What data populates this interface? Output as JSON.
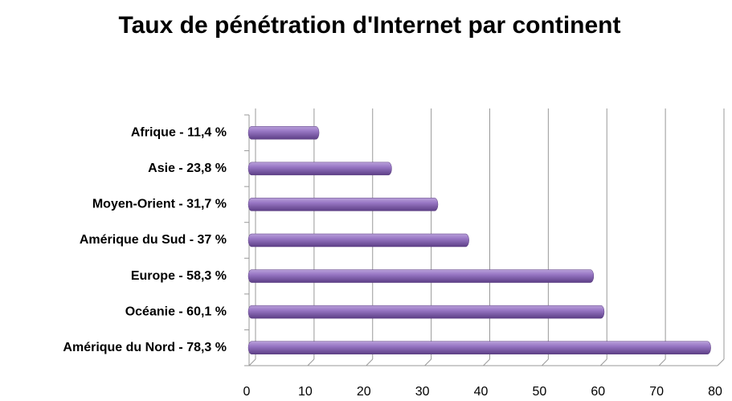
{
  "chart_data": {
    "type": "barh",
    "title": "Taux de pénétration d'Internet par continent",
    "categories": [
      "Afrique - 11,4 %",
      "Asie - 23,8 %",
      "Moyen-Orient - 31,7 %",
      "Amérique du Sud - 37 %",
      "Europe - 58,3 %",
      "Océanie - 60,1 %",
      "Amérique du Nord - 78,3 %"
    ],
    "values": [
      11.4,
      23.8,
      31.7,
      37,
      58.3,
      60.1,
      78.3
    ],
    "color": "#8a67b5",
    "xlim": [
      0,
      80
    ],
    "xticks": [
      0,
      10,
      20,
      30,
      40,
      50,
      60,
      70,
      80
    ],
    "grid": true
  }
}
